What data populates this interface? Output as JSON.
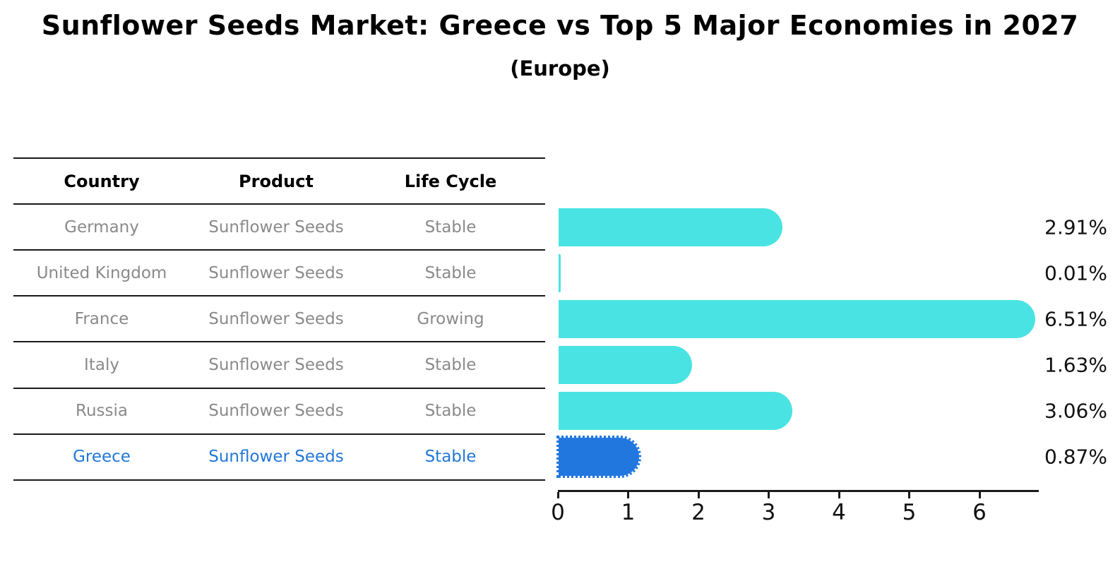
{
  "title": "Sunflower Seeds Market: Greece vs Top 5 Major Economies in 2027",
  "subtitle": "(Europe)",
  "table": {
    "headers": [
      "Country",
      "Product",
      "Life Cycle"
    ],
    "rows": [
      {
        "country": "Germany",
        "product": "Sunflower Seeds",
        "life_cycle": "Stable",
        "highlight": false
      },
      {
        "country": "United Kingdom",
        "product": "Sunflower Seeds",
        "life_cycle": "Stable",
        "highlight": false
      },
      {
        "country": "France",
        "product": "Sunflower Seeds",
        "life_cycle": "Growing",
        "highlight": false
      },
      {
        "country": "Italy",
        "product": "Sunflower Seeds",
        "life_cycle": "Stable",
        "highlight": false
      },
      {
        "country": "Russia",
        "product": "Sunflower Seeds",
        "life_cycle": "Stable",
        "highlight": false
      },
      {
        "country": "Greece",
        "product": "Sunflower Seeds",
        "life_cycle": "Stable",
        "highlight": true
      }
    ]
  },
  "chart_data": {
    "type": "bar",
    "orientation": "horizontal",
    "categories": [
      "Germany",
      "United Kingdom",
      "France",
      "Italy",
      "Russia",
      "Greece"
    ],
    "values": [
      2.91,
      0.01,
      6.51,
      1.63,
      3.06,
      0.87
    ],
    "value_labels": [
      "2.91%",
      "0.01%",
      "6.51%",
      "1.63%",
      "3.06%",
      "0.87%"
    ],
    "xlim": [
      0,
      6.83
    ],
    "xticks": [
      "0",
      "1",
      "2",
      "3",
      "4",
      "5",
      "6"
    ],
    "grid": false,
    "legend": false,
    "bar_color": "#4AE3E3",
    "highlight_bar_color": "#2277DF",
    "highlight_index": 5,
    "highlight_bar_style": "dotted-outline",
    "bar_end_cap": "round"
  },
  "colors": {
    "background": "#FFFFFF",
    "title_text": "#000000",
    "table_header_text": "#000000",
    "table_body_text": "#8A8A8A",
    "highlight_text": "#2277D8",
    "table_line": "#1A1A1A",
    "axis": "#1A1A1A",
    "value_label_text": "#111111"
  }
}
